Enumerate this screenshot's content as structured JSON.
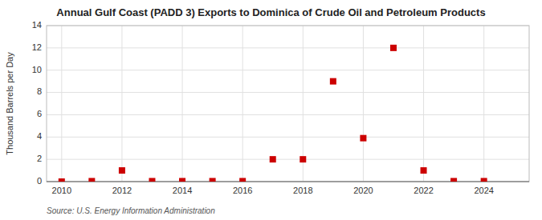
{
  "chart_data": {
    "type": "scatter",
    "title": "Annual Gulf Coast (PADD 3) Exports to Dominica of Crude Oil and Petroleum Products",
    "ylabel": "Thousand Barrels per Day",
    "source": "Source: U.S. Energy Information Administration",
    "x": [
      2010,
      2011,
      2012,
      2013,
      2014,
      2015,
      2016,
      2017,
      2018,
      2019,
      2020,
      2021,
      2022,
      2023,
      2024
    ],
    "values": [
      0.0,
      0.04,
      1.0,
      0.04,
      0.04,
      0.04,
      0.04,
      2.0,
      2.0,
      9.0,
      3.9,
      12.0,
      1.0,
      0.04,
      0.04
    ],
    "color": "#cc0000",
    "marker": "square",
    "xlim": [
      2009.5,
      2025.5
    ],
    "ylim": [
      0,
      14
    ],
    "xticks": [
      2010,
      2012,
      2014,
      2016,
      2018,
      2020,
      2022,
      2024
    ],
    "yticks": [
      0,
      2,
      4,
      6,
      8,
      10,
      12,
      14
    ],
    "grid": true
  }
}
